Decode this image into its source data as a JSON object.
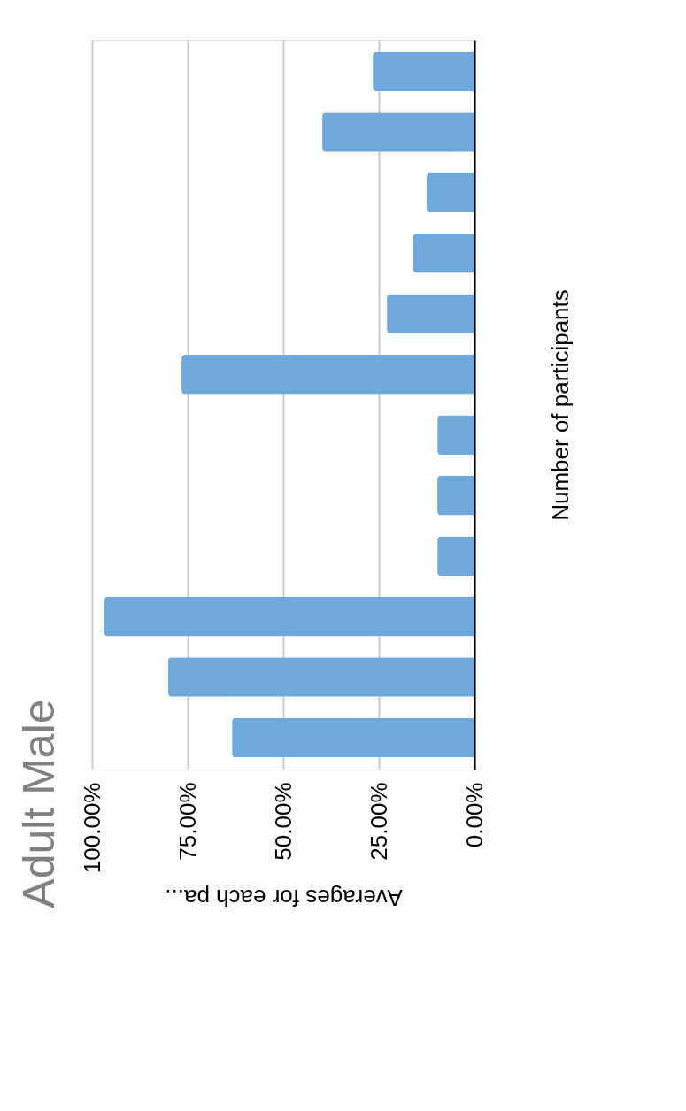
{
  "chart_data": {
    "type": "bar",
    "orientation": "horizontal",
    "title": "Adult Male",
    "xlabel": "Averages for each pa...",
    "ylabel": "Number of participants",
    "categories": [
      null,
      null,
      null,
      null,
      null,
      null,
      null,
      null,
      null,
      null,
      null,
      null
    ],
    "values": [
      26.6,
      39.8,
      12.5,
      16.0,
      22.9,
      76.6,
      9.7,
      9.7,
      9.7,
      96.8,
      80.1,
      63.4
    ],
    "color": "#6fa8dc",
    "xlim": [
      100,
      0
    ],
    "xticks": [
      {
        "value": 0,
        "label": "0.00%"
      },
      {
        "value": 25,
        "label": "25.00%"
      },
      {
        "value": 50,
        "label": "50.00%"
      },
      {
        "value": 75,
        "label": "75.00%"
      },
      {
        "value": 100,
        "label": "100.00%"
      }
    ],
    "grid": "x",
    "tick_labels": "x"
  }
}
